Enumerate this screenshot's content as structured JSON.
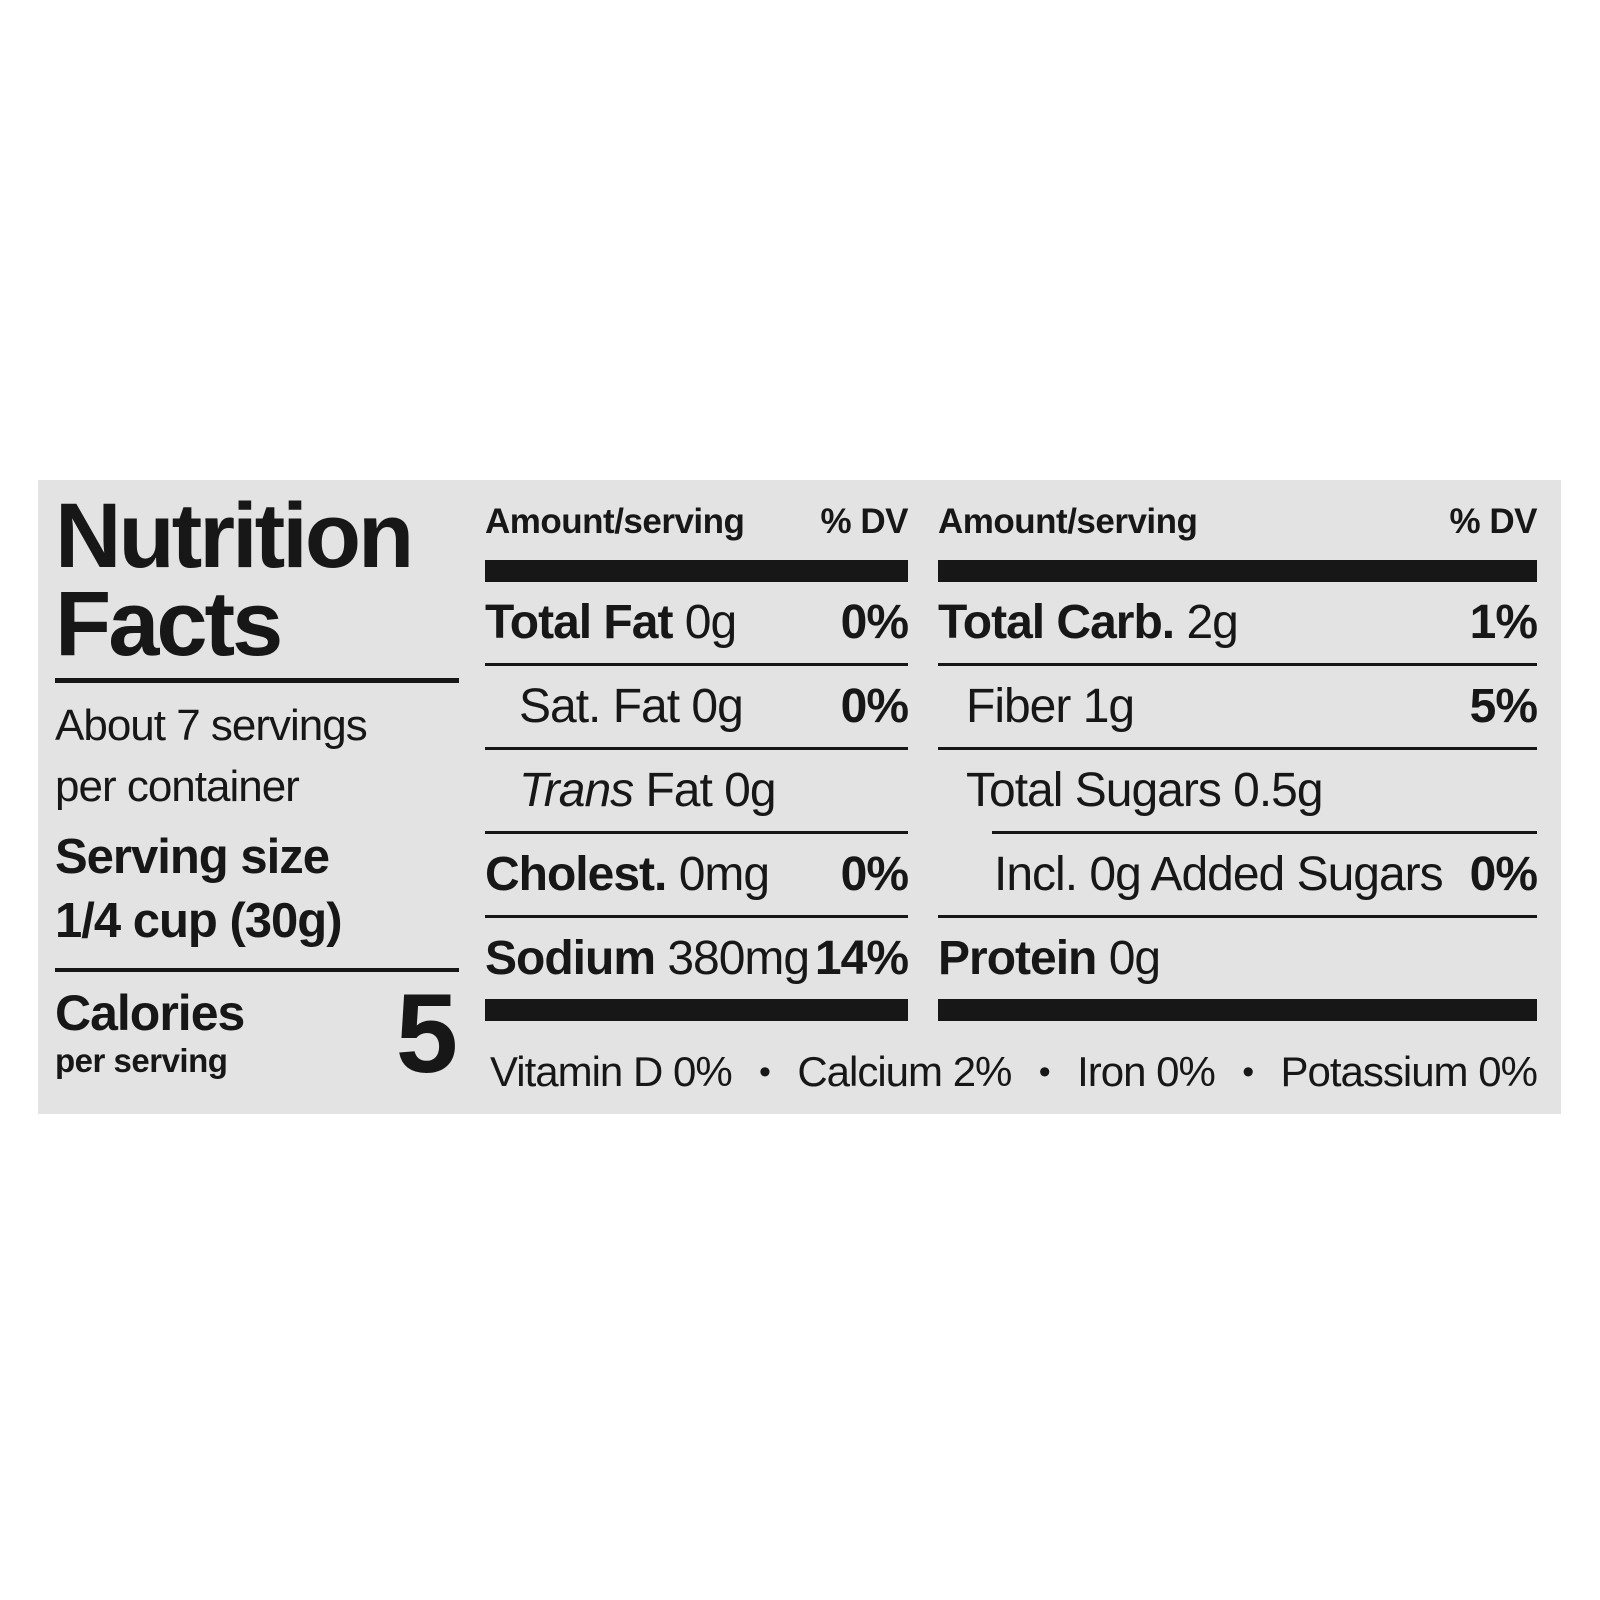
{
  "page": {
    "background": "#ffffff",
    "label_background": "#e3e3e3",
    "ink_color": "#171717"
  },
  "left": {
    "title_line1": "Nutrition",
    "title_line2": "Facts",
    "servings_line1": "About 7 servings",
    "servings_line2": "per container",
    "serving_size_label": "Serving size",
    "serving_size_value": "1/4 cup (30g)",
    "calories_label": "Calories",
    "calories_sub": "per serving",
    "calories_value": "5"
  },
  "mid": {
    "header_amount": "Amount/serving",
    "header_dv": "% DV",
    "rows": [
      {
        "bold": "Total Fat",
        "rest": " 0g",
        "dv": "0%"
      },
      {
        "rest": "Sat. Fat 0g",
        "dv": "0%"
      },
      {
        "italic": "Trans",
        "rest": " Fat 0g",
        "dv": ""
      },
      {
        "bold": "Cholest.",
        "rest": " 0mg",
        "dv": "0%"
      },
      {
        "bold": "Sodium",
        "rest": " 380mg",
        "dv": "14%"
      }
    ]
  },
  "right": {
    "header_amount": "Amount/serving",
    "header_dv": "% DV",
    "rows": [
      {
        "bold": "Total Carb.",
        "rest": " 2g",
        "dv": "1%"
      },
      {
        "rest": "Fiber 1g",
        "dv": "5%"
      },
      {
        "rest": "Total Sugars 0.5g",
        "dv": ""
      },
      {
        "rest": "Incl. 0g Added Sugars",
        "dv": "0%"
      },
      {
        "bold": "Protein",
        "rest": " 0g",
        "dv": ""
      }
    ]
  },
  "footer": {
    "bullet": "•",
    "items": [
      "Vitamin D 0%",
      "Calcium 2%",
      "Iron 0%",
      "Potassium 0%"
    ]
  }
}
